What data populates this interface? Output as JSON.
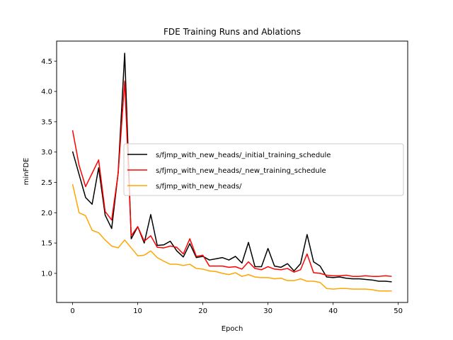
{
  "chart_data": {
    "type": "line",
    "title": "FDE Training Runs and Ablations",
    "xlabel": "Epoch",
    "ylabel": "minFDE",
    "xlim": [
      -2.45,
      51.45
    ],
    "ylim": [
      0.52,
      4.83
    ],
    "xticks": [
      0,
      10,
      20,
      30,
      40,
      50
    ],
    "yticks": [
      1.0,
      1.5,
      2.0,
      2.5,
      3.0,
      3.5,
      4.0,
      4.5
    ],
    "ytick_labels": [
      "1.0",
      "1.5",
      "2.0",
      "2.5",
      "3.0",
      "3.5",
      "4.0",
      "4.5"
    ],
    "grid": false,
    "legend_position": "center-right",
    "x": [
      0,
      1,
      2,
      3,
      4,
      5,
      6,
      7,
      8,
      9,
      10,
      11,
      12,
      13,
      14,
      15,
      16,
      17,
      18,
      19,
      20,
      21,
      22,
      23,
      24,
      25,
      26,
      27,
      28,
      29,
      30,
      31,
      32,
      33,
      34,
      35,
      36,
      37,
      38,
      39,
      40,
      41,
      42,
      43,
      44,
      45,
      46,
      47,
      48,
      49
    ],
    "series": [
      {
        "name": "s/fjmp_with_new_heads/_initial_training_schedule",
        "color": "#000000",
        "values": [
          3.01,
          2.63,
          2.25,
          2.14,
          2.74,
          1.96,
          1.74,
          2.66,
          4.63,
          1.57,
          1.77,
          1.5,
          1.97,
          1.46,
          1.47,
          1.53,
          1.37,
          1.27,
          1.49,
          1.26,
          1.28,
          1.22,
          1.24,
          1.26,
          1.22,
          1.28,
          1.17,
          1.51,
          1.11,
          1.11,
          1.41,
          1.12,
          1.1,
          1.16,
          1.04,
          1.16,
          1.64,
          1.19,
          1.12,
          0.94,
          0.93,
          0.94,
          0.92,
          0.91,
          0.91,
          0.9,
          0.89,
          0.87,
          0.87,
          0.86
        ]
      },
      {
        "name": "s/fjmp_with_new_heads/_new_training_schedule",
        "color": "#ff0000",
        "values": [
          3.36,
          2.78,
          2.43,
          2.65,
          2.87,
          2.02,
          1.88,
          2.65,
          4.17,
          1.62,
          1.77,
          1.53,
          1.62,
          1.43,
          1.42,
          1.45,
          1.43,
          1.32,
          1.57,
          1.28,
          1.3,
          1.12,
          1.12,
          1.12,
          1.1,
          1.11,
          1.07,
          1.19,
          1.08,
          1.06,
          1.11,
          1.07,
          1.06,
          1.08,
          1.02,
          1.06,
          1.32,
          1.01,
          1.0,
          0.97,
          0.96,
          0.96,
          0.97,
          0.95,
          0.95,
          0.96,
          0.95,
          0.95,
          0.96,
          0.95
        ]
      },
      {
        "name": "s/fjmp_with_new_heads/",
        "color": "#ffa500",
        "values": [
          2.47,
          2.0,
          1.95,
          1.71,
          1.67,
          1.55,
          1.45,
          1.42,
          1.55,
          1.42,
          1.29,
          1.3,
          1.37,
          1.26,
          1.2,
          1.15,
          1.15,
          1.13,
          1.15,
          1.08,
          1.07,
          1.04,
          1.03,
          1.0,
          0.98,
          1.01,
          0.95,
          0.98,
          0.94,
          0.93,
          0.93,
          0.91,
          0.92,
          0.88,
          0.88,
          0.91,
          0.87,
          0.87,
          0.85,
          0.75,
          0.74,
          0.75,
          0.75,
          0.74,
          0.74,
          0.74,
          0.73,
          0.71,
          0.71,
          0.71
        ]
      }
    ]
  }
}
